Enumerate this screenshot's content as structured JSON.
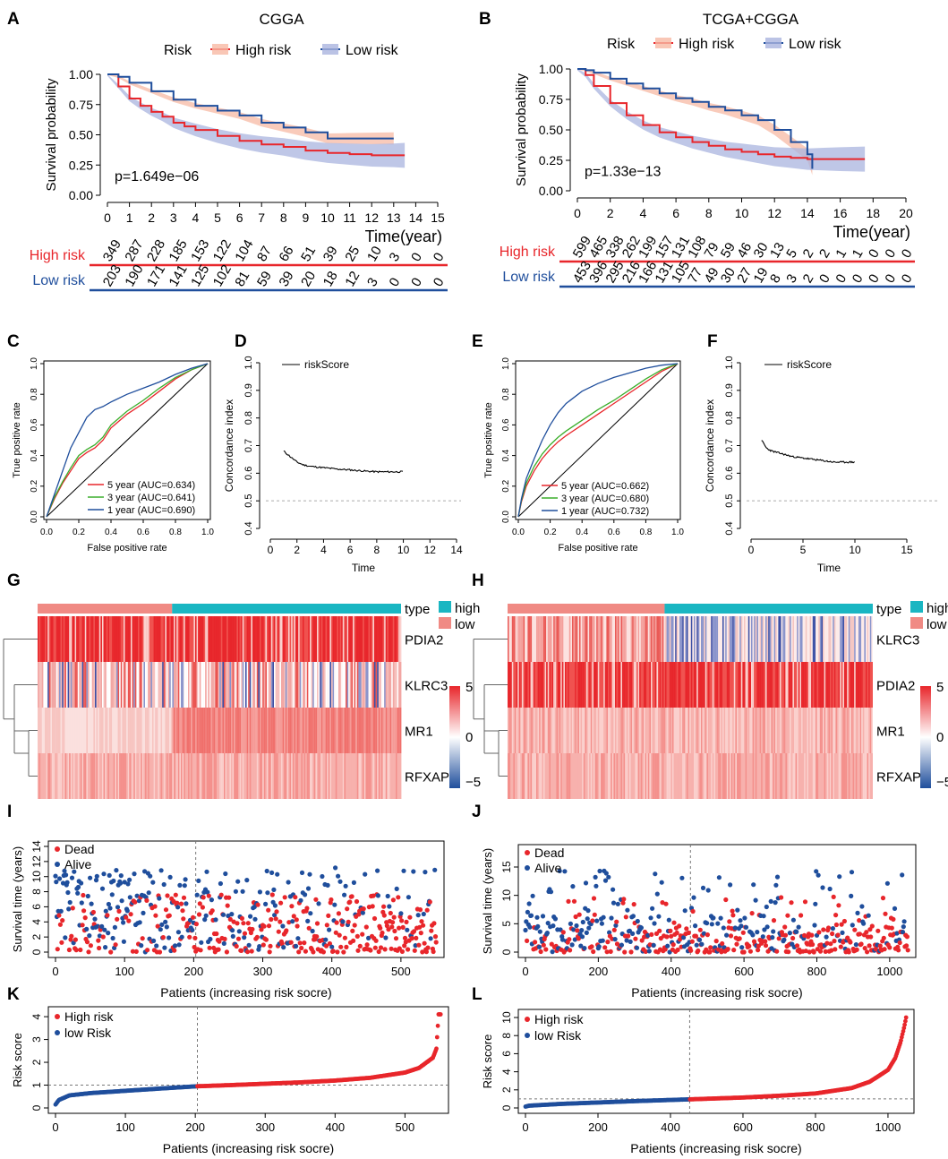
{
  "colors": {
    "high": "#e8262b",
    "low": "#1f4e9c",
    "high_band": "#f7b9a4",
    "low_band": "#aab4df",
    "teal": "#1ab6c2",
    "salmon": "#f08a84"
  },
  "chart_data": [
    {
      "panel": "A",
      "type": "line",
      "title": "CGGA",
      "legend_title": "Risk",
      "legend": [
        "High risk",
        "Low risk"
      ],
      "ylabel": "Survival probability",
      "xlabel": "Time(year)",
      "yticks": [
        "0.00",
        "0.25",
        "0.50",
        "0.75",
        "1.00"
      ],
      "ylim": [
        0,
        1
      ],
      "xticks": [
        "0",
        "1",
        "2",
        "3",
        "4",
        "5",
        "6",
        "7",
        "8",
        "9",
        "10",
        "11",
        "12",
        "13",
        "14",
        "15"
      ],
      "xlim": [
        0,
        15
      ],
      "pvalue": "p=1.649e−06",
      "series": [
        {
          "name": "High risk",
          "x": [
            0,
            0.5,
            1,
            1.5,
            2,
            2.5,
            3,
            3.5,
            4,
            5,
            6,
            7,
            8,
            9,
            10,
            11,
            12,
            13,
            13.5
          ],
          "y": [
            1,
            0.9,
            0.8,
            0.74,
            0.69,
            0.65,
            0.6,
            0.57,
            0.54,
            0.49,
            0.45,
            0.42,
            0.4,
            0.37,
            0.35,
            0.34,
            0.33,
            0.33,
            0.33
          ]
        },
        {
          "name": "Low risk",
          "x": [
            0,
            0.5,
            1,
            2,
            3,
            4,
            5,
            6,
            7,
            8,
            9,
            10,
            11,
            12,
            13
          ],
          "y": [
            1,
            0.98,
            0.93,
            0.86,
            0.79,
            0.74,
            0.7,
            0.66,
            0.6,
            0.56,
            0.52,
            0.47,
            0.47,
            0.47,
            0.47
          ]
        }
      ],
      "risk_table": {
        "rows": [
          "High risk",
          "Low risk"
        ],
        "high": [
          "349",
          "287",
          "228",
          "185",
          "153",
          "122",
          "104",
          "87",
          "66",
          "51",
          "39",
          "25",
          "10",
          "3",
          "0",
          "0"
        ],
        "low": [
          "203",
          "190",
          "171",
          "141",
          "125",
          "102",
          "81",
          "59",
          "39",
          "20",
          "18",
          "12",
          "3",
          "0",
          "0",
          "0"
        ]
      }
    },
    {
      "panel": "B",
      "type": "line",
      "title": "TCGA+CGGA",
      "legend_title": "Risk",
      "legend": [
        "High risk",
        "Low risk"
      ],
      "ylabel": "Survival probability",
      "xlabel": "Time(year)",
      "yticks": [
        "0.00",
        "0.25",
        "0.50",
        "0.75",
        "1.00"
      ],
      "ylim": [
        0,
        1
      ],
      "xticks": [
        "0",
        "2",
        "4",
        "6",
        "8",
        "10",
        "12",
        "14",
        "16",
        "18",
        "20"
      ],
      "xlim": [
        0,
        20
      ],
      "pvalue": "p=1.33e−13",
      "series": [
        {
          "name": "High risk",
          "x": [
            0,
            0.5,
            1,
            2,
            3,
            4,
            5,
            6,
            7,
            8,
            9,
            10,
            11,
            12,
            13,
            14,
            15,
            16,
            17.5
          ],
          "y": [
            1,
            0.95,
            0.86,
            0.72,
            0.62,
            0.54,
            0.48,
            0.44,
            0.4,
            0.37,
            0.34,
            0.32,
            0.3,
            0.28,
            0.27,
            0.26,
            0.26,
            0.26,
            0.26
          ]
        },
        {
          "name": "Low risk",
          "x": [
            0,
            0.5,
            1,
            2,
            3,
            4,
            5,
            6,
            7,
            8,
            9,
            10,
            11,
            12,
            13,
            14,
            14.3
          ],
          "y": [
            1,
            0.99,
            0.97,
            0.92,
            0.88,
            0.84,
            0.8,
            0.76,
            0.73,
            0.69,
            0.66,
            0.62,
            0.58,
            0.5,
            0.4,
            0.3,
            0.18
          ]
        }
      ],
      "risk_table": {
        "rows": [
          "High risk",
          "Low risk"
        ],
        "high": [
          "599",
          "465",
          "338",
          "262",
          "199",
          "157",
          "131",
          "108",
          "79",
          "59",
          "46",
          "30",
          "13",
          "5",
          "2",
          "2",
          "1",
          "1",
          "0",
          "0",
          "0"
        ],
        "low": [
          "453",
          "396",
          "295",
          "216",
          "166",
          "131",
          "105",
          "77",
          "49",
          "30",
          "27",
          "19",
          "8",
          "3",
          "2",
          "0",
          "0",
          "0",
          "0",
          "0",
          "0"
        ]
      }
    },
    {
      "panel": "C",
      "type": "line",
      "xlabel": "False positive rate",
      "ylabel": "True positive rate",
      "ticks": [
        "0.0",
        "0.2",
        "0.4",
        "0.6",
        "0.8",
        "1.0"
      ],
      "series": [
        {
          "name": "5 year (AUC=0.634)",
          "color": "#e8262b",
          "x": [
            0,
            0.05,
            0.1,
            0.15,
            0.2,
            0.25,
            0.3,
            0.35,
            0.4,
            0.5,
            0.6,
            0.7,
            0.8,
            0.9,
            1
          ],
          "y": [
            0,
            0.12,
            0.22,
            0.3,
            0.38,
            0.42,
            0.45,
            0.5,
            0.58,
            0.67,
            0.74,
            0.82,
            0.9,
            0.96,
            1
          ]
        },
        {
          "name": "3 year (AUC=0.641)",
          "color": "#3aae2b",
          "x": [
            0,
            0.05,
            0.1,
            0.15,
            0.2,
            0.25,
            0.3,
            0.35,
            0.4,
            0.5,
            0.6,
            0.7,
            0.8,
            0.9,
            1
          ],
          "y": [
            0,
            0.13,
            0.23,
            0.32,
            0.4,
            0.44,
            0.47,
            0.52,
            0.6,
            0.69,
            0.76,
            0.84,
            0.91,
            0.96,
            1
          ]
        },
        {
          "name": "1 year (AUC=0.690)",
          "color": "#1f4e9c",
          "x": [
            0,
            0.05,
            0.1,
            0.15,
            0.2,
            0.25,
            0.3,
            0.35,
            0.4,
            0.5,
            0.6,
            0.7,
            0.8,
            0.9,
            1
          ],
          "y": [
            0,
            0.15,
            0.3,
            0.45,
            0.55,
            0.65,
            0.7,
            0.72,
            0.75,
            0.8,
            0.84,
            0.88,
            0.93,
            0.97,
            1
          ]
        }
      ]
    },
    {
      "panel": "D",
      "type": "line",
      "xlabel": "Time",
      "ylabel": "Concordance index",
      "legend": [
        "riskScore"
      ],
      "xticks": [
        "0",
        "2",
        "4",
        "6",
        "8",
        "10",
        "12",
        "14"
      ],
      "xlim": [
        0,
        14
      ],
      "yticks": [
        "0.4",
        "0.5",
        "0.6",
        "0.7",
        "0.8",
        "0.9",
        "1.0"
      ],
      "ylim": [
        0.4,
        1.0
      ],
      "ref_line": 0.5,
      "series": [
        {
          "name": "riskScore",
          "x": [
            1,
            1.5,
            2,
            2.5,
            3,
            4,
            5,
            6,
            7,
            8,
            9,
            10
          ],
          "y": [
            0.68,
            0.66,
            0.64,
            0.63,
            0.625,
            0.62,
            0.615,
            0.612,
            0.608,
            0.605,
            0.605,
            0.605
          ]
        }
      ]
    },
    {
      "panel": "E",
      "type": "line",
      "xlabel": "False positive rate",
      "ylabel": "True positive rate",
      "ticks": [
        "0.0",
        "0.2",
        "0.4",
        "0.6",
        "0.8",
        "1.0"
      ],
      "series": [
        {
          "name": "5 year (AUC=0.662)",
          "color": "#e8262b",
          "x": [
            0,
            0.02,
            0.05,
            0.1,
            0.15,
            0.2,
            0.25,
            0.3,
            0.4,
            0.5,
            0.6,
            0.7,
            0.8,
            0.9,
            1
          ],
          "y": [
            0,
            0.1,
            0.2,
            0.3,
            0.38,
            0.44,
            0.49,
            0.53,
            0.6,
            0.67,
            0.74,
            0.81,
            0.88,
            0.95,
            1
          ]
        },
        {
          "name": "3 year (AUC=0.680)",
          "color": "#3aae2b",
          "x": [
            0,
            0.02,
            0.05,
            0.1,
            0.15,
            0.2,
            0.25,
            0.3,
            0.4,
            0.5,
            0.6,
            0.7,
            0.8,
            0.9,
            1
          ],
          "y": [
            0,
            0.11,
            0.22,
            0.33,
            0.41,
            0.47,
            0.52,
            0.56,
            0.63,
            0.7,
            0.76,
            0.83,
            0.9,
            0.96,
            1
          ]
        },
        {
          "name": "1 year (AUC=0.732)",
          "color": "#1f4e9c",
          "x": [
            0,
            0.02,
            0.05,
            0.1,
            0.15,
            0.2,
            0.25,
            0.3,
            0.4,
            0.5,
            0.6,
            0.7,
            0.8,
            0.9,
            1
          ],
          "y": [
            0,
            0.12,
            0.25,
            0.38,
            0.5,
            0.6,
            0.68,
            0.74,
            0.82,
            0.87,
            0.91,
            0.94,
            0.97,
            0.99,
            1
          ]
        }
      ]
    },
    {
      "panel": "F",
      "type": "line",
      "xlabel": "Time",
      "ylabel": "Concordance index",
      "legend": [
        "riskScore"
      ],
      "xticks": [
        "0",
        "5",
        "10",
        "15"
      ],
      "xlim": [
        0,
        15
      ],
      "yticks": [
        "0.4",
        "0.5",
        "0.6",
        "0.7",
        "0.8",
        "0.9",
        "1.0"
      ],
      "ylim": [
        0.4,
        1.0
      ],
      "ref_line": 0.5,
      "series": [
        {
          "name": "riskScore",
          "x": [
            1,
            1.5,
            2,
            3,
            4,
            5,
            6,
            7,
            8,
            9,
            10
          ],
          "y": [
            0.72,
            0.69,
            0.68,
            0.67,
            0.66,
            0.655,
            0.65,
            0.645,
            0.64,
            0.64,
            0.64
          ]
        }
      ]
    },
    {
      "panel": "G",
      "type": "heatmap",
      "legend_title": "type",
      "legend": [
        "high",
        "low"
      ],
      "rows": [
        "PDIA2",
        "KLRC3",
        "MR1",
        "RFXAP"
      ],
      "scale": [
        "5",
        "0",
        "−5"
      ],
      "low_fraction": 0.37
    },
    {
      "panel": "H",
      "type": "heatmap",
      "legend_title": "type",
      "legend": [
        "high",
        "low"
      ],
      "rows": [
        "KLRC3",
        "PDIA2",
        "MR1",
        "RFXAP"
      ],
      "scale": [
        "5",
        "0",
        "−5"
      ],
      "low_fraction": 0.43
    },
    {
      "panel": "I",
      "type": "scatter",
      "xlabel": "Patients (increasing risk socre)",
      "ylabel": "Survival time (years)",
      "legend": [
        "Dead",
        "Alive"
      ],
      "xticks": [
        "0",
        "100",
        "200",
        "300",
        "400",
        "500"
      ],
      "xlim": [
        0,
        552
      ],
      "yticks": [
        "0",
        "2",
        "4",
        "6",
        "8",
        "10",
        "12",
        "14"
      ],
      "ylim": [
        0,
        14
      ],
      "cutoff": 203,
      "n": 552
    },
    {
      "panel": "J",
      "type": "scatter",
      "xlabel": "Patients (increasing risk socre)",
      "ylabel": "Survival time (years)",
      "legend": [
        "Dead",
        "Alive"
      ],
      "xticks": [
        "0",
        "200",
        "400",
        "600",
        "800",
        "1000"
      ],
      "xlim": [
        0,
        1052
      ],
      "yticks": [
        "0",
        "5",
        "10",
        "15"
      ],
      "ylim": [
        0,
        18
      ],
      "cutoff": 453,
      "n": 1052
    },
    {
      "panel": "K",
      "type": "scatter",
      "xlabel": "Patients (increasing risk socre)",
      "ylabel": "Risk score",
      "legend": [
        "High risk",
        "low Risk"
      ],
      "xticks": [
        "0",
        "100",
        "200",
        "300",
        "400",
        "500"
      ],
      "xlim": [
        0,
        552
      ],
      "yticks": [
        "0",
        "1",
        "2",
        "3",
        "4"
      ],
      "ylim": [
        0,
        4.2
      ],
      "cutoff": 203,
      "hline": 1,
      "n": 552,
      "curve": {
        "x": [
          0,
          5,
          20,
          50,
          100,
          150,
          203,
          250,
          300,
          350,
          400,
          450,
          500,
          520,
          540,
          545,
          548
        ],
        "y": [
          0.15,
          0.35,
          0.55,
          0.65,
          0.75,
          0.85,
          0.95,
          1.0,
          1.06,
          1.12,
          1.2,
          1.32,
          1.55,
          1.75,
          2.2,
          2.6,
          4.1
        ]
      }
    },
    {
      "panel": "L",
      "type": "scatter",
      "xlabel": "Patients (increasing risk socre)",
      "ylabel": "Risk score",
      "legend": [
        "High risk",
        "low Risk"
      ],
      "xticks": [
        "0",
        "200",
        "400",
        "600",
        "800",
        "1000"
      ],
      "xlim": [
        0,
        1052
      ],
      "yticks": [
        "0",
        "2",
        "4",
        "6",
        "8",
        "10"
      ],
      "ylim": [
        0,
        10.3
      ],
      "cutoff": 453,
      "hline": 1,
      "n": 1052,
      "curve": {
        "x": [
          0,
          10,
          100,
          200,
          300,
          453,
          600,
          700,
          800,
          900,
          950,
          1000,
          1020,
          1035,
          1045,
          1050
        ],
        "y": [
          0.15,
          0.25,
          0.45,
          0.6,
          0.75,
          0.95,
          1.15,
          1.35,
          1.6,
          2.2,
          2.9,
          4.2,
          5.5,
          7.3,
          9,
          10
        ]
      }
    }
  ]
}
